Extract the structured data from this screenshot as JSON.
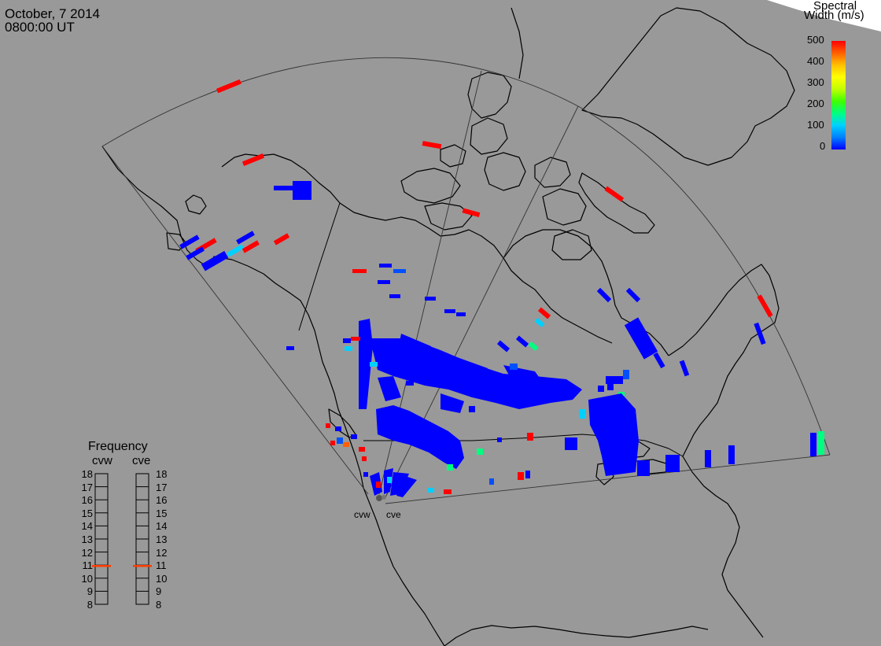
{
  "header": {
    "date": "October, 7 2014",
    "time": "0800:00 UT"
  },
  "colorbar": {
    "title_line1": "Spectral",
    "title_line2": "Width (m/s)",
    "ticks": [
      "500",
      "400",
      "300",
      "200",
      "100",
      "0"
    ],
    "colors": [
      "#0000ff",
      "#0080ff",
      "#00d0ff",
      "#00ff80",
      "#40ff00",
      "#c0ff00",
      "#ffff00",
      "#ffc000",
      "#ff6000",
      "#ff0000"
    ]
  },
  "frequency": {
    "title": "Frequency",
    "radars": [
      "cvw",
      "cve"
    ],
    "scale": [
      "18",
      "17",
      "16",
      "15",
      "14",
      "13",
      "12",
      "11",
      "10",
      "9",
      "8"
    ],
    "marker_color": "#ff3c00"
  },
  "sites": {
    "west_label": "cvw",
    "east_label": "cve"
  }
}
